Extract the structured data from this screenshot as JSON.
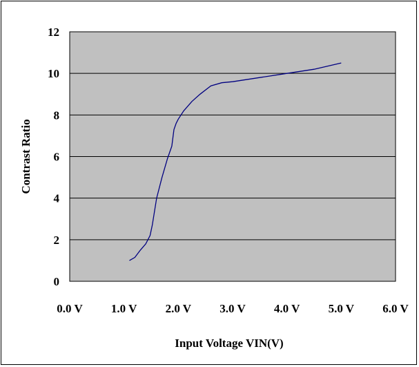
{
  "chart_data": {
    "type": "line",
    "title": "",
    "xlabel": "Input Voltage VIN(V)",
    "ylabel": "Contrast Ratio",
    "xlim": [
      0,
      6
    ],
    "ylim": [
      0,
      12
    ],
    "x_tick_labels": [
      "0.0 V",
      "1.0 V",
      "2.0 V",
      "3.0 V",
      "4.0 V",
      "5.0 V",
      "6.0 V"
    ],
    "y_tick_labels": [
      "0",
      "2",
      "4",
      "6",
      "8",
      "10",
      "12"
    ],
    "grid": "horizontal",
    "plot_background": "#c0c0c0",
    "line_color": "#000080",
    "series": [
      {
        "x": [
          1.1,
          1.2,
          1.3,
          1.4,
          1.48,
          1.52,
          1.6,
          1.7,
          1.8,
          1.88,
          1.92,
          1.96,
          2.0,
          2.1,
          2.25,
          2.4,
          2.6,
          2.8,
          3.0,
          3.5,
          4.0,
          4.5,
          5.0
        ],
        "y": [
          1.0,
          1.15,
          1.5,
          1.8,
          2.2,
          2.7,
          4.0,
          5.0,
          5.9,
          6.5,
          7.3,
          7.6,
          7.8,
          8.2,
          8.65,
          9.0,
          9.4,
          9.55,
          9.6,
          9.8,
          10.0,
          10.2,
          10.5
        ]
      }
    ]
  }
}
